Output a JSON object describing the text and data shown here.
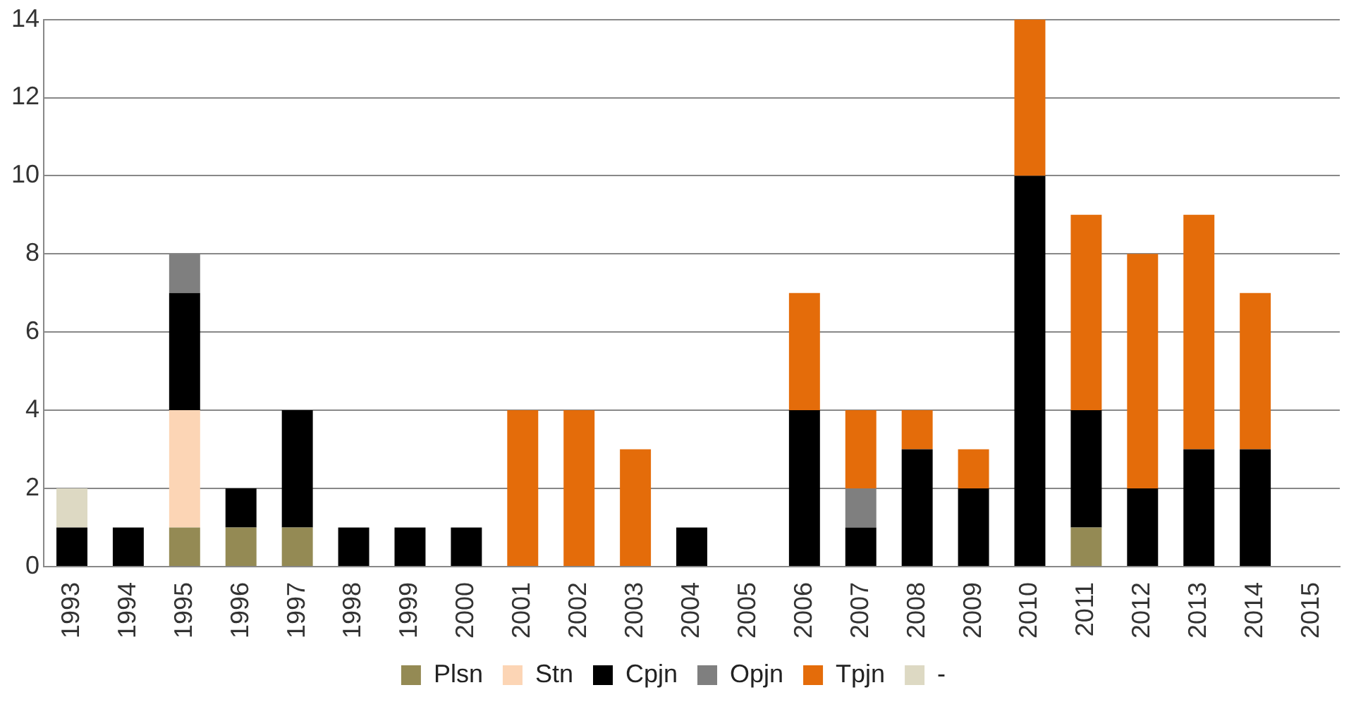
{
  "chart_data": {
    "type": "bar",
    "stacked": true,
    "categories": [
      "1993",
      "1994",
      "1995",
      "1996",
      "1997",
      "1998",
      "1999",
      "2000",
      "2001",
      "2002",
      "2003",
      "2004",
      "2005",
      "2006",
      "2007",
      "2008",
      "2009",
      "2010",
      "2011",
      "2012",
      "2013",
      "2014",
      "2015"
    ],
    "series": [
      {
        "name": "Plsn",
        "color": "#948a54",
        "values": [
          0,
          0,
          1,
          1,
          1,
          0,
          0,
          0,
          0,
          0,
          0,
          0,
          0,
          0,
          0,
          0,
          0,
          0,
          1,
          0,
          0,
          0,
          0
        ]
      },
      {
        "name": "Stn",
        "color": "#fcd5b5",
        "values": [
          0,
          0,
          3,
          0,
          0,
          0,
          0,
          0,
          0,
          0,
          0,
          0,
          0,
          0,
          0,
          0,
          0,
          0,
          0,
          0,
          0,
          0,
          0
        ]
      },
      {
        "name": "Cpjn",
        "color": "#000000",
        "values": [
          1,
          1,
          3,
          1,
          3,
          1,
          1,
          1,
          0,
          0,
          0,
          1,
          0,
          4,
          1,
          3,
          2,
          10,
          3,
          2,
          3,
          3,
          0
        ]
      },
      {
        "name": "Opjn",
        "color": "#7f7f7f",
        "values": [
          0,
          0,
          1,
          0,
          0,
          0,
          0,
          0,
          0,
          0,
          0,
          0,
          0,
          0,
          1,
          0,
          0,
          0,
          0,
          0,
          0,
          0,
          0
        ]
      },
      {
        "name": "Tpjn",
        "color": "#e46c0a",
        "values": [
          0,
          0,
          0,
          0,
          0,
          0,
          0,
          0,
          4,
          4,
          3,
          0,
          0,
          3,
          2,
          1,
          1,
          4,
          5,
          6,
          6,
          4,
          0
        ]
      },
      {
        "name": "-",
        "color": "#ddd9c3",
        "values": [
          1,
          0,
          0,
          0,
          0,
          0,
          0,
          0,
          0,
          0,
          0,
          0,
          0,
          0,
          0,
          0,
          0,
          0,
          0,
          0,
          0,
          0,
          0
        ]
      }
    ],
    "ylim": [
      0,
      14
    ],
    "yticks": [
      0,
      2,
      4,
      6,
      8,
      10,
      12,
      14
    ],
    "grid": "y",
    "legend": "bottom"
  }
}
